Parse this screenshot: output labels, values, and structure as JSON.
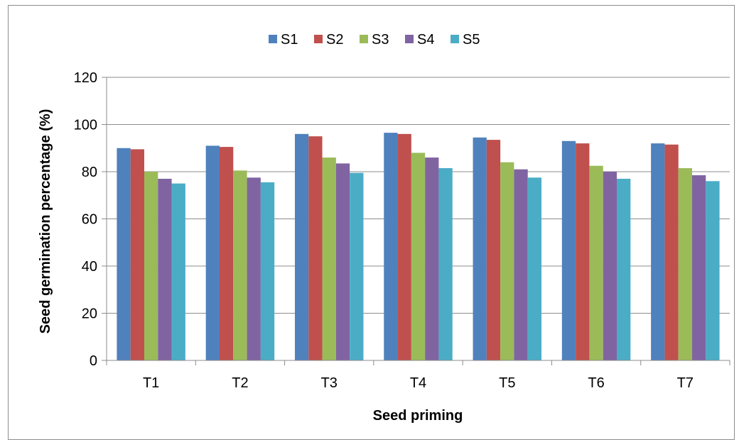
{
  "chart_data": {
    "type": "bar",
    "title": "",
    "xlabel": "Seed priming",
    "ylabel": "Seed germination percentage (%)",
    "ylim": [
      0,
      120
    ],
    "yticks": [
      0,
      20,
      40,
      60,
      80,
      100,
      120
    ],
    "grid": true,
    "legend_position": "top",
    "categories": [
      "T1",
      "T2",
      "T3",
      "T4",
      "T5",
      "T6",
      "T7"
    ],
    "series": [
      {
        "name": "S1",
        "color": "#4f81bd",
        "values": [
          90,
          91,
          96,
          96.5,
          94.5,
          93,
          92
        ]
      },
      {
        "name": "S2",
        "color": "#c0504d",
        "values": [
          89.5,
          90.5,
          95,
          96,
          93.5,
          92,
          91.5
        ]
      },
      {
        "name": "S3",
        "color": "#9bbb59",
        "values": [
          80,
          80.5,
          86,
          88,
          84,
          82.5,
          81.5
        ]
      },
      {
        "name": "S4",
        "color": "#8064a2",
        "values": [
          77,
          77.5,
          83.5,
          86,
          81,
          80,
          78.5
        ]
      },
      {
        "name": "S5",
        "color": "#4bacc6",
        "values": [
          75,
          75.5,
          79.5,
          81.5,
          77.5,
          77,
          76
        ]
      }
    ]
  }
}
